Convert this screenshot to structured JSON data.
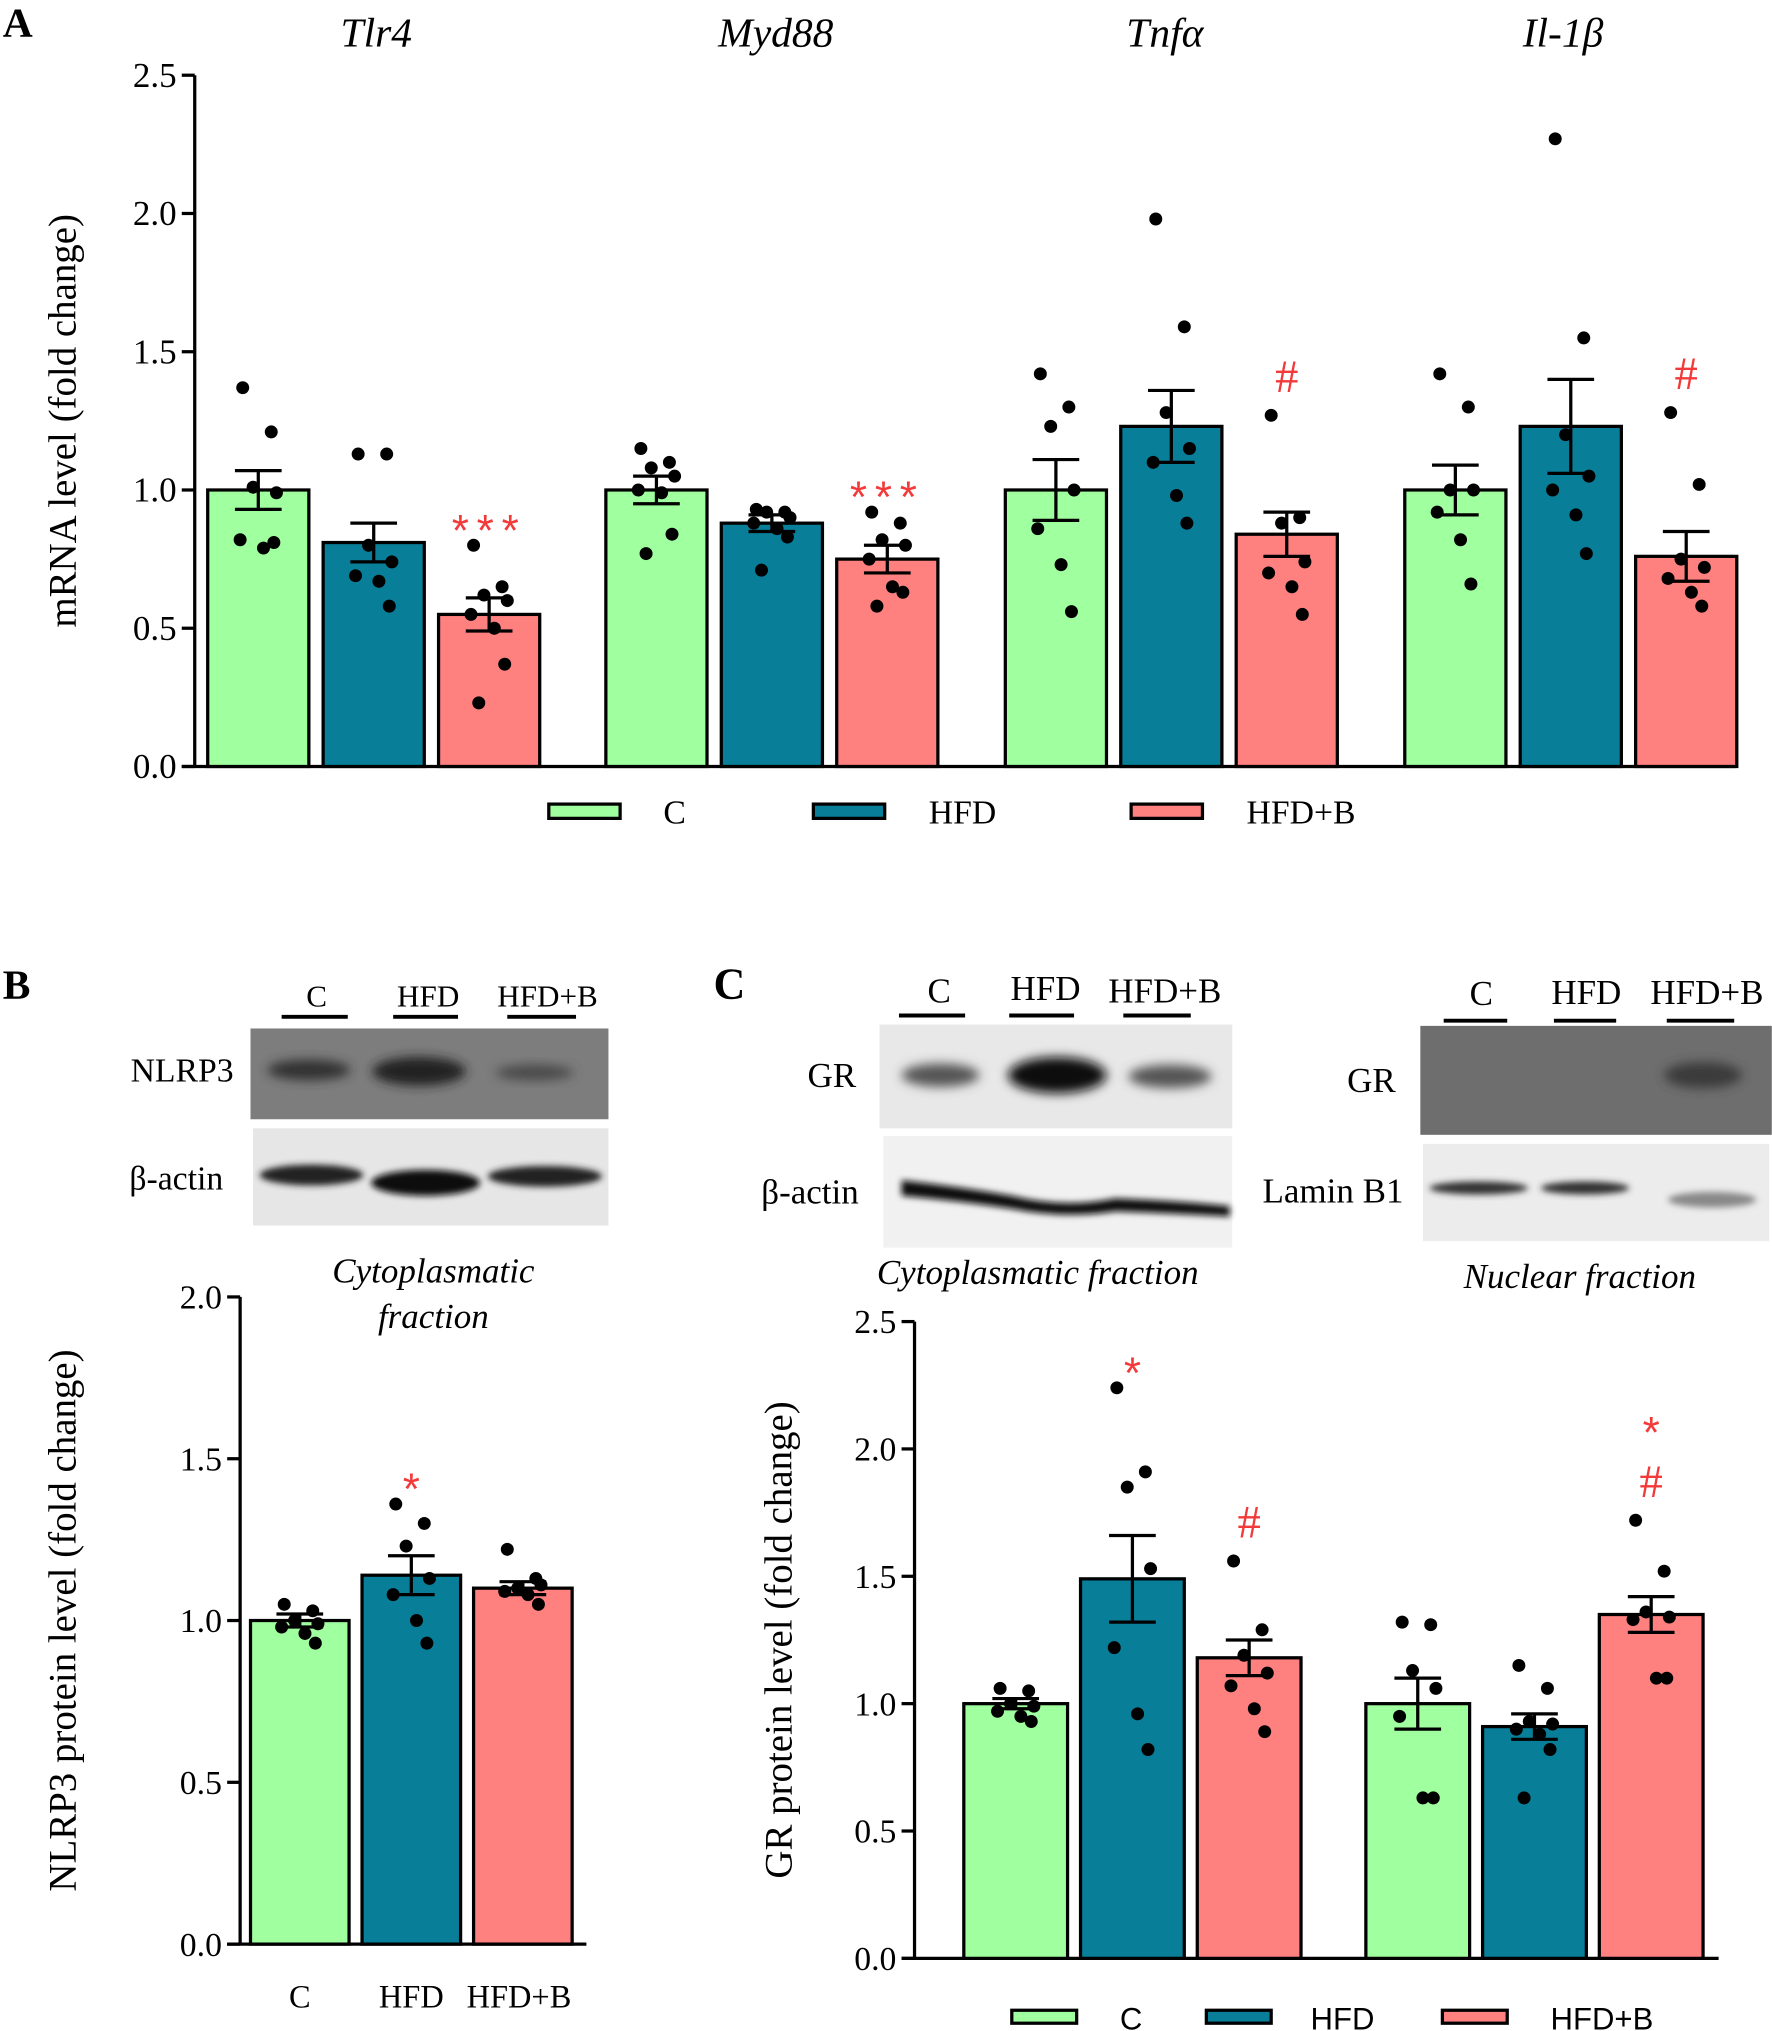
{
  "colors": {
    "C": "#a0ff9e",
    "HFD": "#087e98",
    "HFD+B": "#fe807f",
    "annotation": "#f23a3a",
    "axis": "#000000"
  },
  "groups": [
    "C",
    "HFD",
    "HFD+B"
  ],
  "panels": {
    "A": {
      "label": "A"
    },
    "B": {
      "label": "B",
      "blot_lanes": [
        "C",
        "HFD",
        "HFD+B"
      ],
      "blot_rows": [
        "NLRP3",
        "β-actin"
      ],
      "fraction": [
        "Cytoplasmatic",
        "fraction"
      ]
    },
    "C": {
      "label": "C",
      "cyto_lanes": [
        "C",
        "HFD",
        "HFD+B"
      ],
      "cyto_rows": [
        "GR",
        "β-actin"
      ],
      "cyto_fraction": "Cytoplasmatic fraction",
      "nuc_lanes": [
        "C",
        "HFD",
        "HFD+B"
      ],
      "nuc_rows": [
        "GR",
        "Lamin B1"
      ],
      "nuc_fraction": "Nuclear fraction"
    }
  },
  "chart_data": [
    {
      "id": "A",
      "type": "bar",
      "ylabel": "mRNA level (fold change)",
      "ylim": [
        0,
        2.5
      ],
      "yticks": [
        "0.0",
        "0.5",
        "1.0",
        "1.5",
        "2.0",
        "2.5"
      ],
      "categories": [
        "Tlr4",
        "Myd88",
        "Tnfα",
        "Il-1β"
      ],
      "legend": {
        "position": "bottom",
        "entries": [
          "C",
          "HFD",
          "HFD+B"
        ]
      },
      "series": [
        {
          "name": "C",
          "values": [
            1.0,
            1.0,
            1.0,
            1.0
          ],
          "sem": [
            0.07,
            0.05,
            0.11,
            0.09
          ],
          "points": [
            [
              1.37,
              1.21,
              1.01,
              0.99,
              0.82,
              0.79,
              0.81
            ],
            [
              1.15,
              1.1,
              1.08,
              1.05,
              1.0,
              0.99,
              0.84,
              0.77
            ],
            [
              1.42,
              1.3,
              1.23,
              1.0,
              0.86,
              0.73,
              0.56
            ],
            [
              1.42,
              1.3,
              1.0,
              1.0,
              0.92,
              0.82,
              0.66
            ]
          ]
        },
        {
          "name": "HFD",
          "values": [
            0.81,
            0.88,
            1.23,
            1.23
          ],
          "sem": [
            0.07,
            0.03,
            0.13,
            0.17
          ],
          "points": [
            [
              1.13,
              1.13,
              0.8,
              0.74,
              0.69,
              0.67,
              0.58
            ],
            [
              0.93,
              0.92,
              0.92,
              0.9,
              0.88,
              0.86,
              0.83,
              0.71
            ],
            [
              1.98,
              1.59,
              1.28,
              1.15,
              1.1,
              0.98,
              0.88
            ],
            [
              2.27,
              1.55,
              1.2,
              1.05,
              1.0,
              0.91,
              0.77
            ]
          ]
        },
        {
          "name": "HFD+B",
          "values": [
            0.55,
            0.75,
            0.84,
            0.76
          ],
          "sem": [
            0.06,
            0.05,
            0.08,
            0.09
          ],
          "points": [
            [
              0.8,
              0.65,
              0.62,
              0.6,
              0.55,
              0.5,
              0.37,
              0.23
            ],
            [
              0.92,
              0.88,
              0.82,
              0.8,
              0.75,
              0.65,
              0.63,
              0.58
            ],
            [
              1.27,
              0.9,
              0.88,
              0.74,
              0.7,
              0.65,
              0.55
            ],
            [
              1.28,
              1.02,
              0.75,
              0.72,
              0.68,
              0.63,
              0.58
            ]
          ]
        }
      ],
      "annotations": [
        {
          "category": 0,
          "series": 2,
          "text": "***"
        },
        {
          "category": 1,
          "series": 2,
          "text": "***"
        },
        {
          "category": 2,
          "series": 2,
          "text": "#"
        },
        {
          "category": 3,
          "series": 2,
          "text": "#"
        }
      ]
    },
    {
      "id": "B",
      "type": "bar",
      "ylabel": "NLRP3 protein level (fold change)",
      "ylim": [
        0,
        2.0
      ],
      "yticks": [
        "0.0",
        "0.5",
        "1.0",
        "1.5",
        "2.0"
      ],
      "categories": [
        "C",
        "HFD",
        "HFD+B"
      ],
      "series": [
        {
          "name": "NLRP3",
          "values": [
            1.0,
            1.14,
            1.1
          ],
          "sem": [
            0.02,
            0.06,
            0.02
          ],
          "points": [
            [
              1.05,
              1.03,
              1.0,
              0.99,
              0.98,
              0.96,
              0.93
            ],
            [
              1.36,
              1.3,
              1.23,
              1.13,
              1.08,
              1.0,
              0.93
            ],
            [
              1.22,
              1.13,
              1.1,
              1.11,
              1.09,
              1.08,
              1.05
            ]
          ]
        }
      ],
      "annotations": [
        {
          "category": 1,
          "text": "*"
        }
      ]
    },
    {
      "id": "C",
      "type": "bar",
      "ylabel": "GR protein level (fold change)",
      "ylim": [
        0,
        2.5
      ],
      "yticks": [
        "0.0",
        "0.5",
        "1.0",
        "1.5",
        "2.0",
        "2.5"
      ],
      "categories": [
        "Cytoplasmatic fraction",
        "Nuclear fraction"
      ],
      "legend": {
        "position": "bottom",
        "entries": [
          "C",
          "HFD",
          "HFD+B"
        ]
      },
      "series": [
        {
          "name": "C",
          "values": [
            1.0,
            1.0
          ],
          "sem": [
            0.02,
            0.1
          ],
          "points": [
            [
              1.06,
              1.05,
              1.0,
              0.99,
              0.97,
              0.95,
              0.93
            ],
            [
              1.32,
              1.31,
              1.13,
              1.06,
              0.95,
              0.63,
              0.63
            ]
          ]
        },
        {
          "name": "HFD",
          "values": [
            1.49,
            0.91
          ],
          "sem": [
            0.17,
            0.05
          ],
          "points": [
            [
              2.24,
              1.91,
              1.85,
              1.53,
              1.22,
              0.96,
              0.82
            ],
            [
              1.15,
              1.06,
              0.93,
              0.92,
              0.9,
              0.88,
              0.82,
              0.63
            ]
          ]
        },
        {
          "name": "HFD+B",
          "values": [
            1.18,
            1.35
          ],
          "sem": [
            0.07,
            0.07
          ],
          "points": [
            [
              1.56,
              1.29,
              1.19,
              1.12,
              1.07,
              0.98,
              0.89
            ],
            [
              1.72,
              1.52,
              1.36,
              1.34,
              1.33,
              1.1,
              1.1
            ]
          ]
        }
      ],
      "annotations": [
        {
          "category": 0,
          "series": 1,
          "text": "*"
        },
        {
          "category": 0,
          "series": 2,
          "text": "#"
        },
        {
          "category": 1,
          "series": 2,
          "text": "*"
        },
        {
          "category": 1,
          "series": 2,
          "text": "#",
          "stack": 1
        }
      ]
    }
  ]
}
